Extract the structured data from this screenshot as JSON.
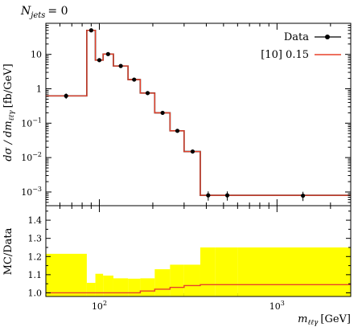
{
  "chart_data": {
    "type": "step",
    "annotation": "N_jets = 0",
    "annotation_base": "N",
    "annotation_sub": "jets",
    "annotation_rhs": "= 0",
    "xscale": "log",
    "xlim": [
      50,
      2600
    ],
    "xlabel": "m_{ℓℓγ} [GeV]",
    "xlabel_base": "m",
    "xlabel_sub": "ℓℓγ",
    "xlabel_unit": "[GeV]",
    "main": {
      "ylabel": "dσ/dm_{ℓℓγ} [fb/GeV]",
      "ylabel_lhs": "dσ / dm",
      "ylabel_sub": "ℓℓγ",
      "ylabel_unit": "[fb/GeV]",
      "yscale": "log",
      "ylim": [
        0.0004,
        80
      ],
      "ytick_labels": [
        {
          "value": 10,
          "base": "10",
          "exp": ""
        },
        {
          "value": 1,
          "base": "1",
          "exp": ""
        },
        {
          "value": 0.1,
          "base": "10",
          "exp": "−1"
        },
        {
          "value": 0.01,
          "base": "10",
          "exp": "−2"
        },
        {
          "value": 0.001,
          "base": "10",
          "exp": "−3"
        }
      ],
      "bin_edges": [
        50,
        85,
        95,
        105,
        120,
        145,
        170,
        205,
        250,
        300,
        370,
        450,
        600,
        2600
      ],
      "data": {
        "name": "Data",
        "x": [
          65,
          90,
          100,
          112,
          132,
          157,
          187,
          227,
          275,
          335,
          410,
          525,
          1400
        ],
        "y": [
          0.62,
          50,
          6.8,
          10.2,
          4.6,
          1.85,
          0.75,
          0.2,
          0.06,
          0.015,
          0.0008,
          0.0008,
          0.00078
        ],
        "yerr_rel": [
          0.18,
          0.04,
          0.08,
          0.06,
          0.08,
          0.1,
          0.12,
          0.12,
          0.12,
          0.12,
          0.3,
          0.3,
          0.3
        ]
      },
      "prediction": {
        "name": "[10] 0.15",
        "color": "#e8402a",
        "values": [
          0.62,
          50,
          6.8,
          10.2,
          4.6,
          1.85,
          0.75,
          0.2,
          0.06,
          0.015,
          0.0008,
          0.0008,
          0.0008
        ]
      }
    },
    "ratio": {
      "ylabel": "MC/Data",
      "ylim": [
        0.98,
        1.48
      ],
      "yticks": [
        1.0,
        1.1,
        1.2,
        1.3,
        1.4
      ],
      "ytick_labels": [
        "1.0",
        "1.1",
        "1.2",
        "1.3",
        "1.4"
      ],
      "band_color": "#ffff00",
      "band_upper": [
        1.215,
        1.055,
        1.105,
        1.095,
        1.08,
        1.078,
        1.08,
        1.13,
        1.155,
        1.155,
        1.25,
        1.25,
        1.25
      ],
      "line_values": [
        1.0,
        1.0,
        1.0,
        1.0,
        1.0,
        1.0,
        1.01,
        1.02,
        1.03,
        1.04,
        1.045,
        1.045,
        1.045
      ],
      "line_color": "#e8402a"
    },
    "xtick_labels": [
      {
        "value": 100,
        "base": "10",
        "exp": "2"
      },
      {
        "value": 1000,
        "base": "10",
        "exp": "3"
      }
    ],
    "legend": "top-right"
  }
}
